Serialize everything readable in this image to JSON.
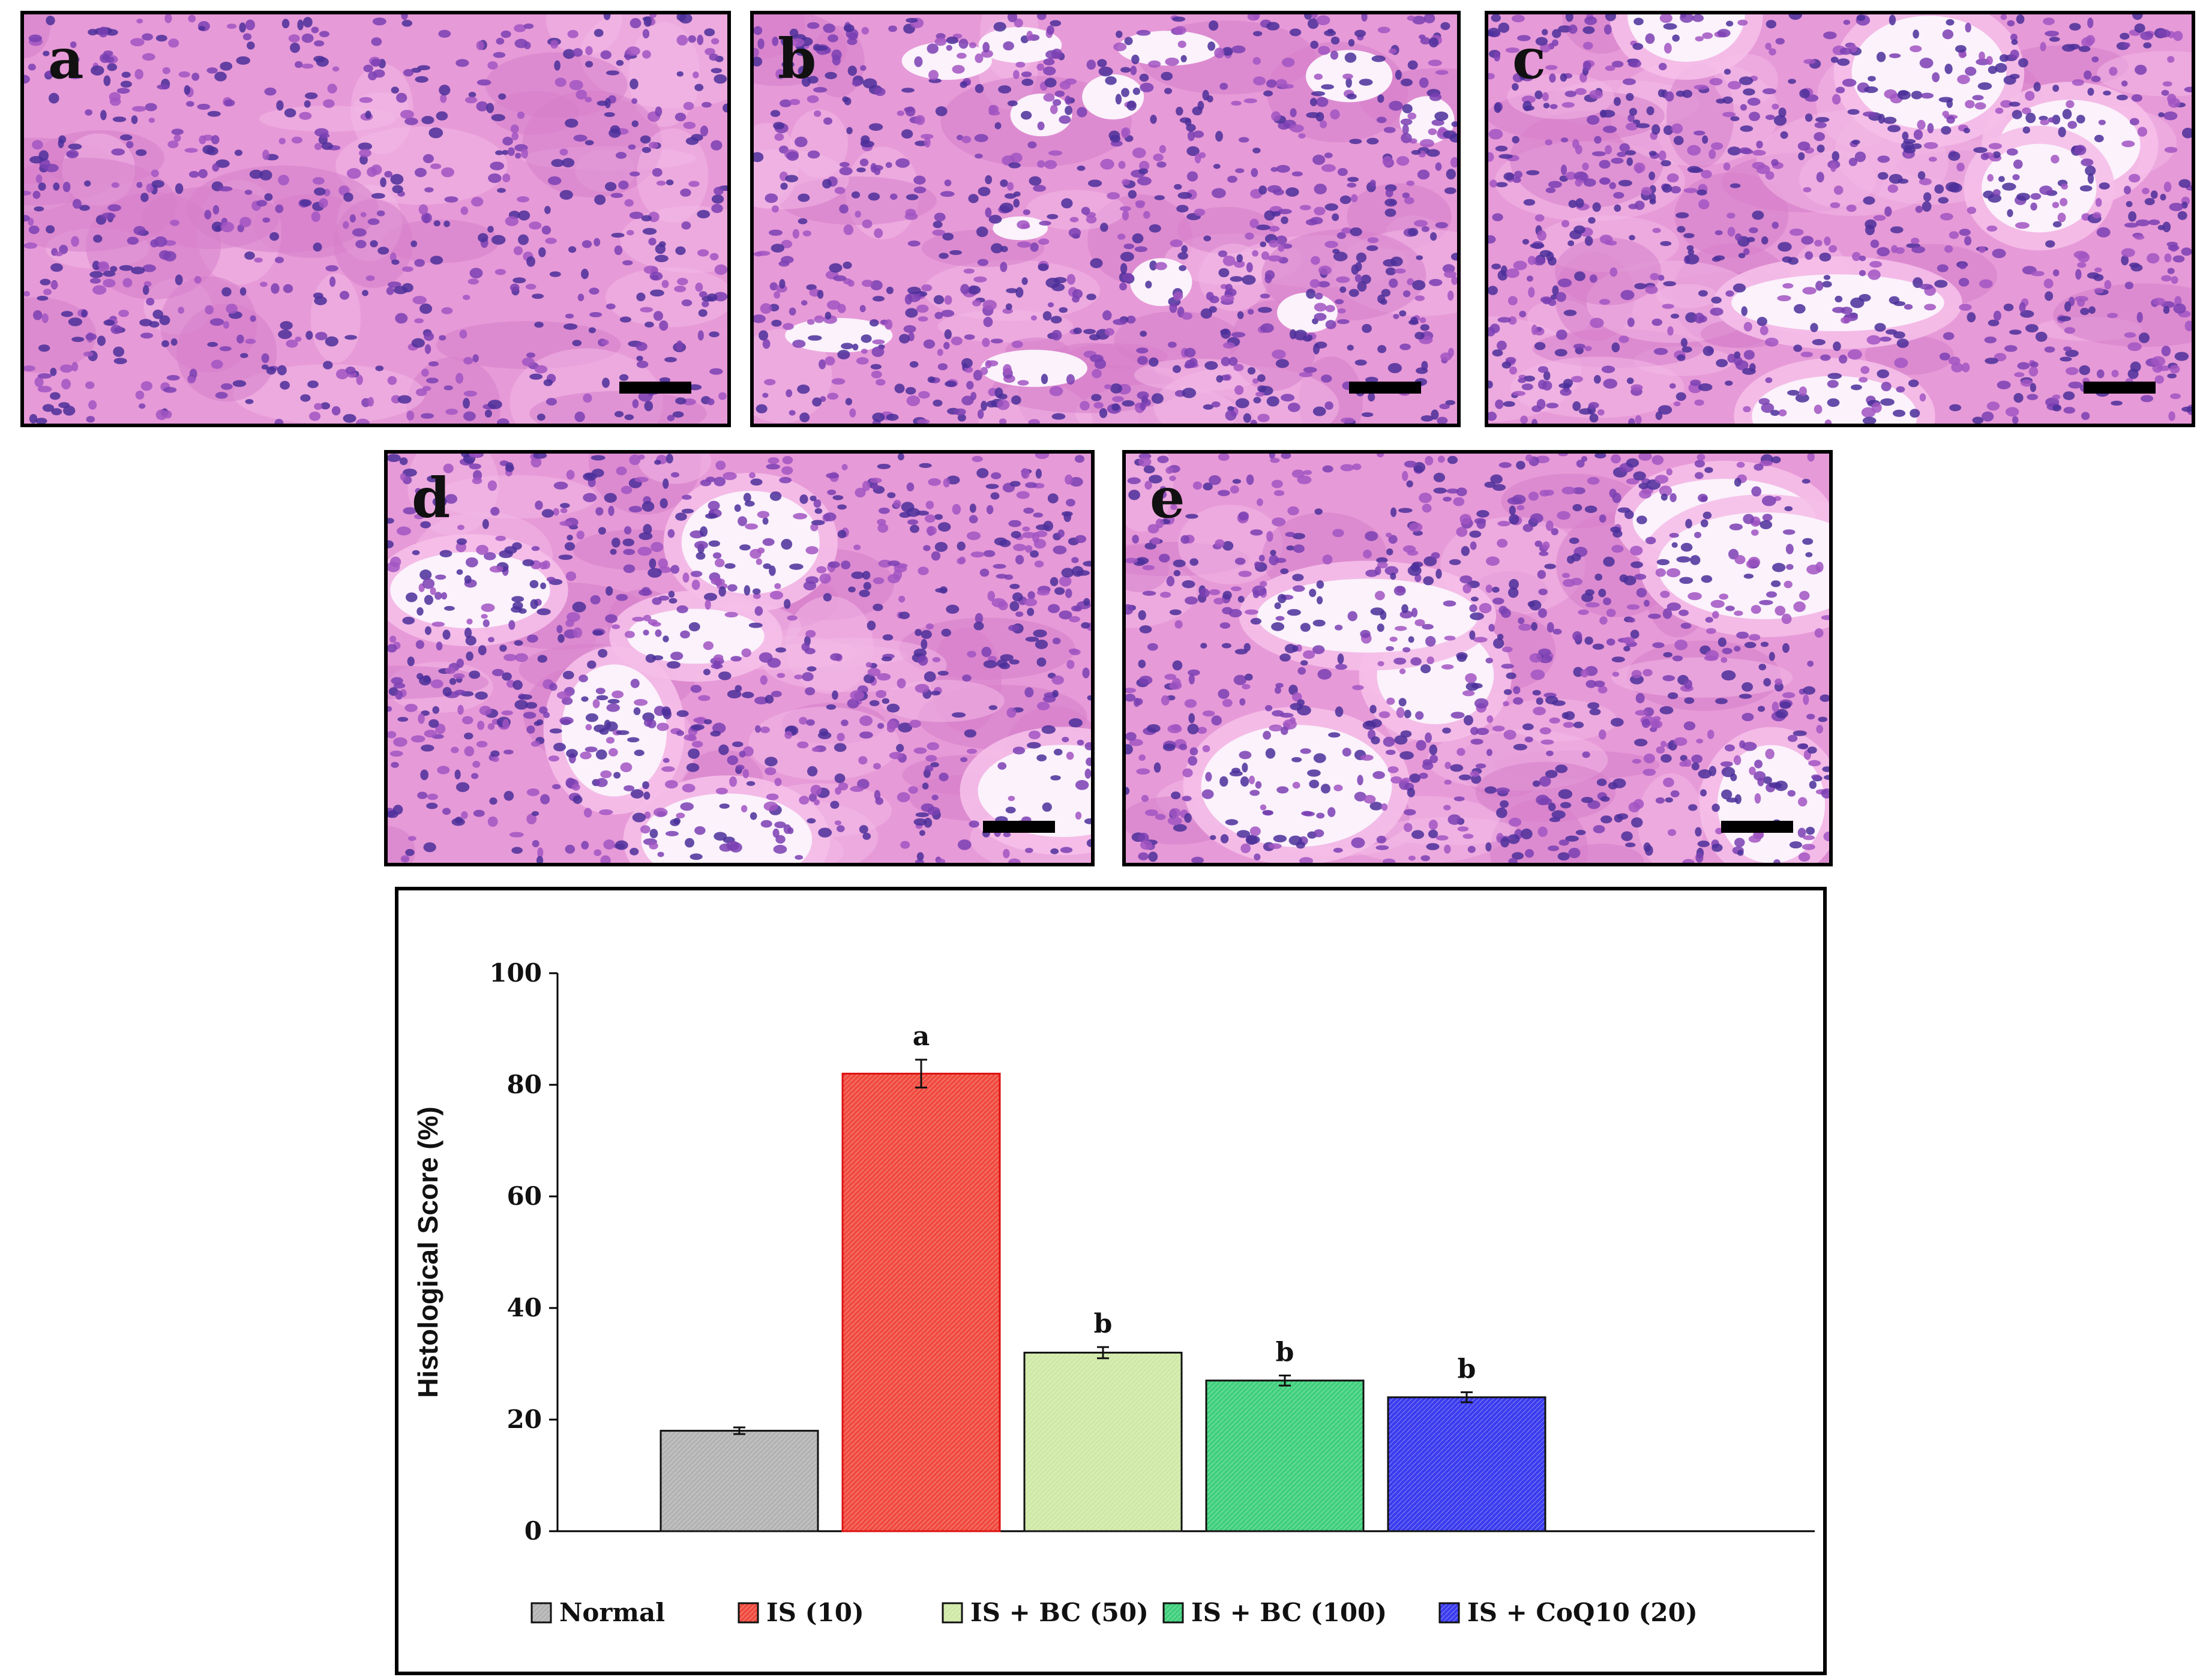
{
  "panels": [
    {
      "id": "a",
      "label": "a"
    },
    {
      "id": "b",
      "label": "b"
    },
    {
      "id": "c",
      "label": "c"
    },
    {
      "id": "d",
      "label": "d"
    },
    {
      "id": "e",
      "label": "e"
    }
  ],
  "chart_data": {
    "type": "bar",
    "categories": [
      "Normal",
      "IS (10)",
      "IS + BC (50)",
      "IS + BC (100)",
      "IS + CoQ10 (20)"
    ],
    "values": [
      18,
      82,
      32,
      27,
      24
    ],
    "errors": [
      0.6,
      2.5,
      1.0,
      0.9,
      0.9
    ],
    "significance": [
      "",
      "a",
      "b",
      "b",
      "b"
    ],
    "colors": [
      "#b3b3b3",
      "#f04a3e",
      "#cfe9a6",
      "#3fcf7c",
      "#3b3bee"
    ],
    "title": "",
    "xlabel": "",
    "ylabel": "Histological Score (%)",
    "ylim": [
      0,
      100
    ],
    "yticks": [
      0,
      20,
      40,
      60,
      80,
      100
    ],
    "legend_position": "bottom",
    "grid": false
  }
}
